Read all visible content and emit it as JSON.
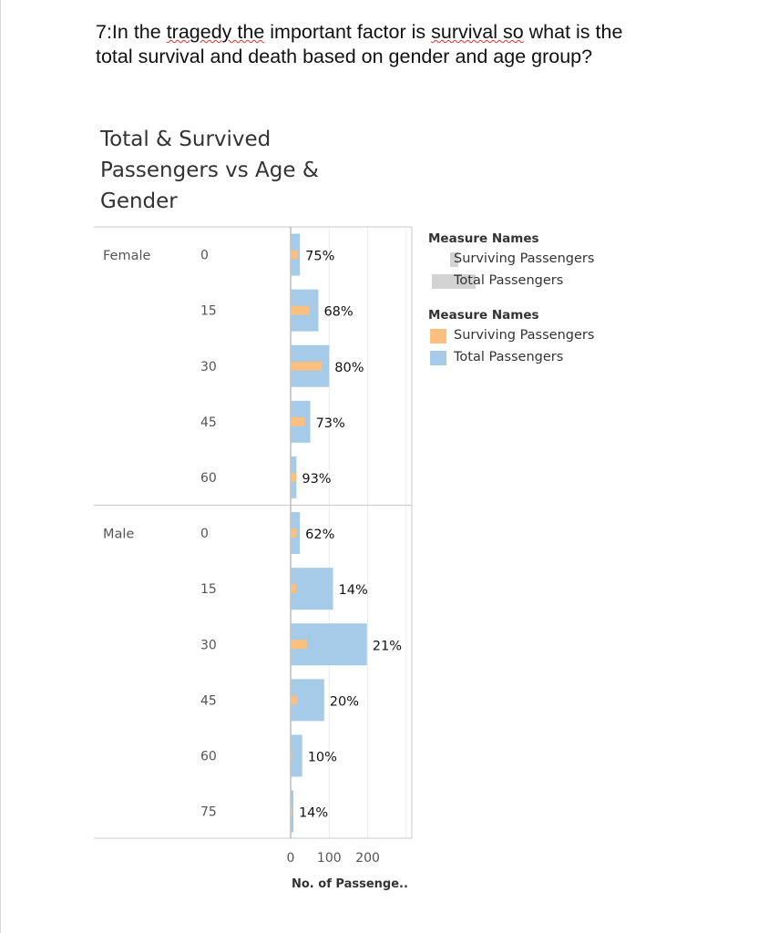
{
  "question": {
    "prefix": "7:In the ",
    "w1": "tragedy the",
    "middle": " important factor is ",
    "w2": "survival so",
    "suffix": " what is the",
    "line2": "total survival and death based on gender and age group?"
  },
  "chart_title": {
    "line1": "Total & Survived",
    "line2": "Passengers vs Age &",
    "line3": "Gender"
  },
  "legends": [
    {
      "header": "Measure Names",
      "items": [
        {
          "label": "Surviving Passengers",
          "color": "#d3d3d3"
        },
        {
          "label": "Total Passengers",
          "color": "#d3d3d3"
        }
      ]
    },
    {
      "header": "Measure Names",
      "items": [
        {
          "label": "Surviving Passengers",
          "color": "#fbbf7f"
        },
        {
          "label": "Total Passengers",
          "color": "#a5cbe8"
        }
      ]
    }
  ],
  "chart_data": {
    "type": "bar",
    "orientation": "horizontal",
    "title": "Total & Survived Passengers vs Age & Gender",
    "xlabel": "No. of Passenge..",
    "xlim": [
      0,
      310
    ],
    "x_ticks": [
      0,
      100,
      200
    ],
    "colors": {
      "surviving": "#fbbf7f",
      "total": "#a5cbe8"
    },
    "groups": [
      {
        "name": "Female",
        "rows": [
          {
            "age": "0",
            "total": 24,
            "surviving": 18,
            "label": "75%"
          },
          {
            "age": "15",
            "total": 72,
            "surviving": 49,
            "label": "68%"
          },
          {
            "age": "30",
            "total": 100,
            "surviving": 80,
            "label": "80%"
          },
          {
            "age": "45",
            "total": 51,
            "surviving": 37,
            "label": "73%"
          },
          {
            "age": "60",
            "total": 15,
            "surviving": 14,
            "label": "93%"
          }
        ]
      },
      {
        "name": "Male",
        "rows": [
          {
            "age": "0",
            "total": 24,
            "surviving": 15,
            "label": "62%"
          },
          {
            "age": "15",
            "total": 110,
            "surviving": 15,
            "label": "14%"
          },
          {
            "age": "30",
            "total": 198,
            "surviving": 42,
            "label": "21%"
          },
          {
            "age": "45",
            "total": 87,
            "surviving": 17,
            "label": "20%"
          },
          {
            "age": "60",
            "total": 30,
            "surviving": 3,
            "label": "10%"
          },
          {
            "age": "75",
            "total": 7,
            "surviving": 1,
            "label": "14%"
          }
        ]
      }
    ],
    "grid": true,
    "legend_position": "right"
  }
}
